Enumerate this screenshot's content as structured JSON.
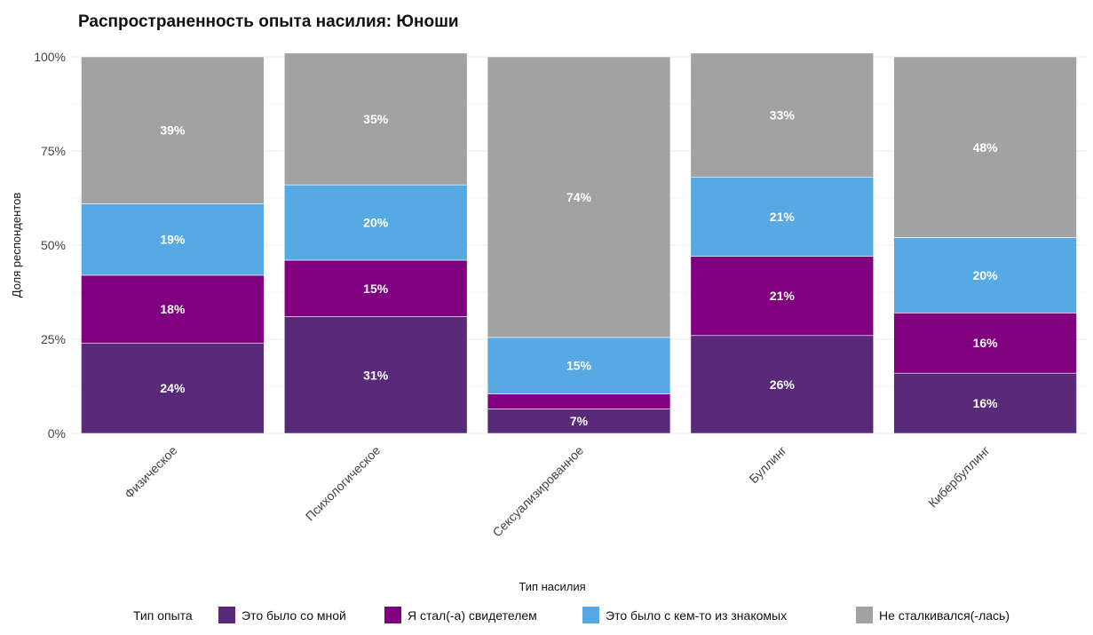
{
  "chart_data": {
    "type": "bar",
    "stacked": true,
    "title": "Распространенность опыта насилия: Юноши",
    "xlabel": "Тип насилия",
    "ylabel": "Доля респондентов",
    "ylim": [
      0,
      1
    ],
    "y_ticks": [
      {
        "value": 0,
        "label": "0%"
      },
      {
        "value": 0.25,
        "label": "25%"
      },
      {
        "value": 0.5,
        "label": "50%"
      },
      {
        "value": 0.75,
        "label": "75%"
      },
      {
        "value": 1,
        "label": "100%"
      }
    ],
    "categories": [
      "Физическое",
      "Психологическое",
      "Сексуализированное",
      "Буллинг",
      "Кибербуллинг"
    ],
    "series": [
      {
        "name": "Это было со мной",
        "color": "#5a2a7a",
        "values": [
          0.24,
          0.31,
          0.065,
          0.26,
          0.16
        ],
        "labels": [
          "24%",
          "31%",
          "7%",
          "26%",
          "16%"
        ]
      },
      {
        "name": "Я стал(-а) свидетелем",
        "color": "#800080",
        "values": [
          0.18,
          0.15,
          0.04,
          0.21,
          0.16
        ],
        "labels": [
          "18%",
          "15%",
          "",
          "21%",
          "16%"
        ]
      },
      {
        "name": "Это было с кем-то из знакомых",
        "color": "#56a9e3",
        "values": [
          0.19,
          0.2,
          0.15,
          0.21,
          0.2
        ],
        "labels": [
          "19%",
          "20%",
          "15%",
          "21%",
          "20%"
        ]
      },
      {
        "name": "Не сталкивался(-лась)",
        "color": "#a2a2a2",
        "values": [
          0.39,
          0.35,
          0.745,
          0.33,
          0.48
        ],
        "labels": [
          "39%",
          "35%",
          "74%",
          "33%",
          "48%"
        ]
      }
    ],
    "grid": true,
    "legend": {
      "title": "Тип опыта",
      "position": "bottom"
    }
  }
}
